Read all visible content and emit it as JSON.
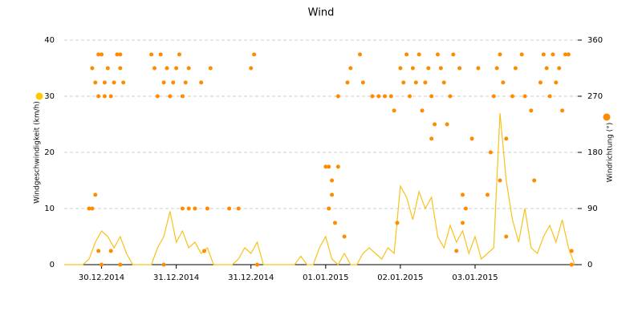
{
  "chart_data": {
    "type": "line",
    "title": "Wind",
    "xlim": [
      0,
      165
    ],
    "xticks": [
      {
        "value": 12,
        "label": "30.12.2014"
      },
      {
        "value": 36,
        "label": "31.12.2014"
      },
      {
        "value": 60,
        "label": "31.12.2014"
      },
      {
        "value": 84,
        "label": "01.01.2015"
      },
      {
        "value": 108,
        "label": "02.01.2015"
      },
      {
        "value": 132,
        "label": "03.01.2015"
      }
    ],
    "ylim": [
      0,
      40
    ],
    "yticks": [
      0,
      10,
      20,
      30,
      40
    ],
    "y2lim": [
      0,
      360
    ],
    "y2ticks": [
      0,
      90,
      180,
      270,
      360
    ],
    "grid": true,
    "series": [
      {
        "name": "Windgeschwindigkeit (km/h)",
        "type": "line",
        "color": "#f7c21b",
        "x": [
          0,
          2,
          4,
          6,
          8,
          10,
          12,
          14,
          16,
          18,
          20,
          22,
          24,
          26,
          28,
          30,
          32,
          34,
          36,
          38,
          40,
          42,
          44,
          46,
          48,
          50,
          52,
          54,
          56,
          58,
          60,
          62,
          64,
          66,
          68,
          70,
          72,
          74,
          76,
          78,
          80,
          82,
          84,
          86,
          88,
          90,
          92,
          94,
          96,
          98,
          100,
          102,
          104,
          106,
          108,
          110,
          112,
          114,
          116,
          118,
          120,
          122,
          124,
          126,
          128,
          130,
          132,
          134,
          136,
          138,
          140,
          142,
          144,
          146,
          148,
          150,
          152,
          154,
          156,
          158,
          160,
          162,
          164
        ],
        "values": [
          0,
          0,
          0,
          0,
          1,
          4,
          6,
          5,
          3,
          5,
          2,
          0,
          0,
          0,
          0,
          3,
          5,
          9.5,
          4,
          6,
          3,
          4,
          2,
          3,
          0,
          0,
          0,
          0,
          1,
          3,
          2,
          4,
          0,
          0,
          0,
          0,
          0,
          0,
          1.5,
          0,
          0,
          3,
          5,
          1,
          0,
          2,
          0,
          0,
          2,
          3,
          2,
          1,
          3,
          2,
          14,
          12,
          8,
          13,
          10,
          12,
          5,
          3,
          7,
          4,
          6,
          2,
          5,
          1,
          2,
          3,
          27,
          15,
          8,
          4,
          10,
          3,
          2,
          5,
          7,
          4,
          8,
          3,
          0
        ]
      },
      {
        "name": "Windrichtung (°)",
        "type": "scatter",
        "axis": "y2",
        "color": "#ff8c00",
        "x": [
          8,
          9,
          10,
          9,
          10,
          11,
          11,
          12,
          13,
          13,
          14,
          15,
          16,
          17,
          18,
          18,
          19,
          11,
          12,
          15,
          18,
          28,
          29,
          30,
          31,
          32,
          33,
          34,
          35,
          36,
          37,
          38,
          39,
          40,
          38,
          40,
          42,
          44,
          46,
          47,
          45,
          32,
          53,
          56,
          60,
          61,
          62,
          84,
          85,
          86,
          86,
          85,
          87,
          88,
          90,
          88,
          91,
          92,
          95,
          96,
          99,
          101,
          103,
          105,
          106,
          107,
          108,
          109,
          110,
          111,
          112,
          113,
          114,
          115,
          116,
          117,
          118,
          119,
          120,
          121,
          122,
          123,
          124,
          125,
          126,
          127,
          118,
          128,
          129,
          128,
          131,
          133,
          136,
          137,
          138,
          139,
          140,
          140,
          141,
          142,
          142,
          144,
          145,
          147,
          148,
          150,
          151,
          153,
          154,
          155,
          156,
          157,
          158,
          159,
          160,
          161,
          162,
          163,
          163
        ],
        "values": [
          90,
          90,
          112,
          315,
          292,
          270,
          337,
          337,
          292,
          270,
          315,
          270,
          292,
          337,
          315,
          337,
          292,
          22,
          0,
          22,
          0,
          337,
          315,
          270,
          337,
          292,
          315,
          270,
          292,
          315,
          337,
          270,
          292,
          315,
          90,
          90,
          90,
          292,
          90,
          315,
          22,
          0,
          90,
          90,
          315,
          337,
          0,
          157,
          157,
          135,
          112,
          90,
          67,
          270,
          45,
          157,
          292,
          315,
          337,
          292,
          270,
          270,
          270,
          270,
          247,
          67,
          315,
          292,
          337,
          270,
          315,
          292,
          337,
          247,
          292,
          315,
          270,
          225,
          337,
          315,
          292,
          225,
          270,
          337,
          22,
          315,
          202,
          112,
          90,
          67,
          202,
          315,
          112,
          180,
          270,
          315,
          337,
          135,
          292,
          202,
          45,
          270,
          315,
          337,
          270,
          247,
          135,
          292,
          337,
          315,
          270,
          337,
          292,
          315,
          247,
          337,
          337,
          22,
          0
        ]
      }
    ]
  }
}
